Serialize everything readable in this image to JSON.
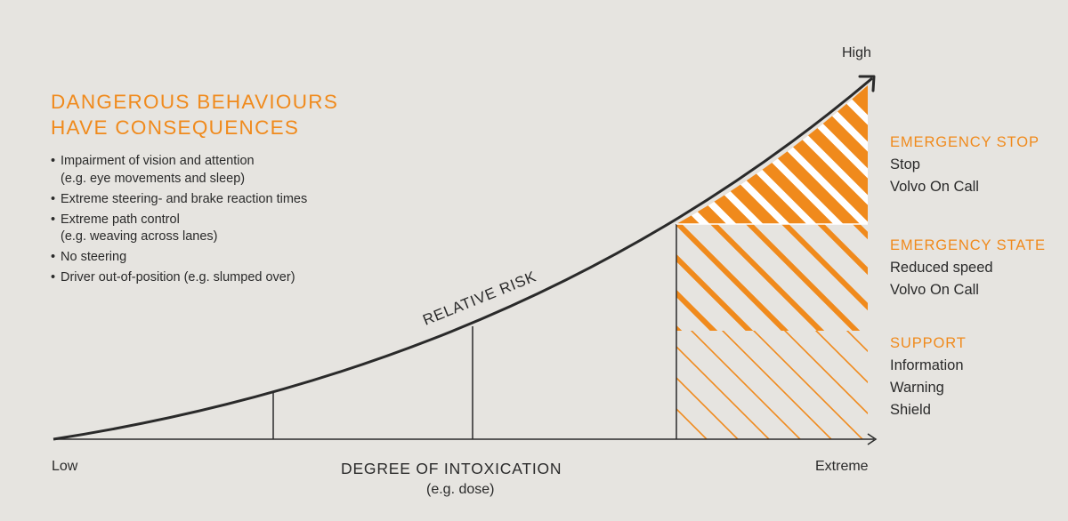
{
  "headline": {
    "line1": "DANGEROUS BEHAVIOURS",
    "line2": "HAVE CONSEQUENCES"
  },
  "bullets": [
    {
      "text": "Impairment of vision and attention",
      "sub": "(e.g. eye movements and sleep)"
    },
    {
      "text": "Extreme steering- and brake reaction times",
      "sub": ""
    },
    {
      "text": "Extreme path control",
      "sub": "(e.g. weaving across lanes)"
    },
    {
      "text": "No steering",
      "sub": ""
    },
    {
      "text": "Driver out-of-position (e.g. slumped over)",
      "sub": ""
    }
  ],
  "axis": {
    "y_high": "High",
    "x_low": "Low",
    "x_extreme": "Extreme",
    "x_title": "DEGREE OF INTOXICATION",
    "x_subtitle": "(e.g. dose)",
    "curve_label": "RELATIVE RISK"
  },
  "levels": [
    {
      "title": "EMERGENCY STOP",
      "items": [
        "Stop",
        "Volvo On Call"
      ]
    },
    {
      "title": "EMERGENCY STATE",
      "items": [
        "Reduced speed",
        "Volvo On Call"
      ]
    },
    {
      "title": "SUPPORT",
      "items": [
        "Information",
        "Warning",
        "Shield"
      ]
    }
  ],
  "colors": {
    "accent": "#f08a1c",
    "background": "#e6e4e0",
    "ink": "#2a2a2a"
  }
}
